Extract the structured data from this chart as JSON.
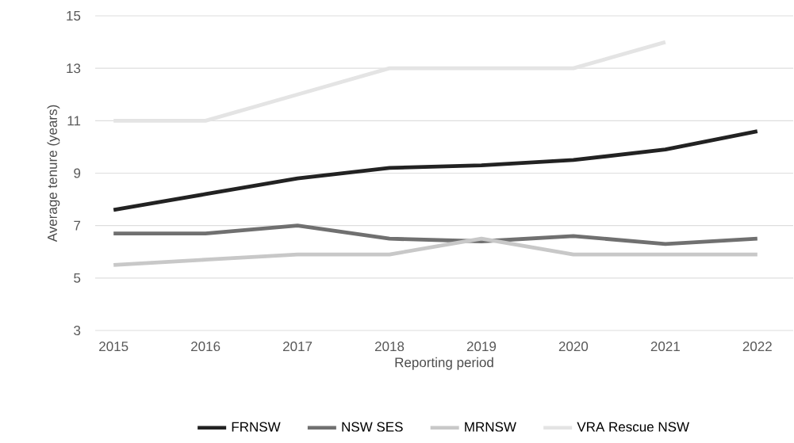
{
  "chart_data": {
    "type": "line",
    "xlabel": "Reporting period",
    "ylabel": "Average tenure (years)",
    "categories": [
      "2015",
      "2016",
      "2017",
      "2018",
      "2019",
      "2020",
      "2021",
      "2022"
    ],
    "series": [
      {
        "name": "FRNSW",
        "color": "#222222",
        "values": [
          7.6,
          8.2,
          8.8,
          9.2,
          9.3,
          9.5,
          9.9,
          10.6
        ]
      },
      {
        "name": "NSW SES",
        "color": "#707070",
        "values": [
          6.7,
          6.7,
          7.0,
          6.5,
          6.4,
          6.6,
          6.3,
          6.5
        ]
      },
      {
        "name": "MRNSW",
        "color": "#c8c8c8",
        "values": [
          5.5,
          5.7,
          5.9,
          5.9,
          6.5,
          5.9,
          5.9,
          5.9
        ]
      },
      {
        "name": "VRA Rescue NSW",
        "color": "#e4e4e4",
        "values": [
          11,
          11,
          12,
          13,
          13,
          13,
          14,
          null
        ]
      }
    ],
    "ylim": [
      3,
      15
    ],
    "yticks": [
      3,
      5,
      7,
      9,
      11,
      13,
      15
    ],
    "grid": "y",
    "legend": "bottom",
    "marker": "none",
    "line_style": "solid"
  }
}
